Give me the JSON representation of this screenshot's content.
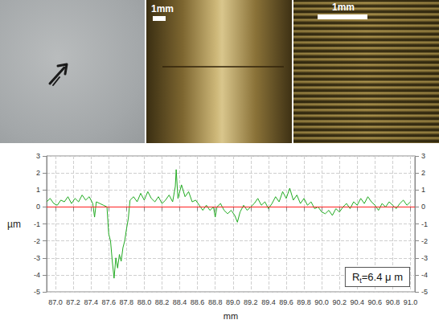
{
  "photos": {
    "scale_bars": [
      "1mm",
      "1mm"
    ]
  },
  "chart_data": {
    "type": "line",
    "xlabel": "mm",
    "ylabel": "µm",
    "annotation": "Rt=6.4 μ m",
    "color": "#22aa22",
    "zero_line": 0,
    "zero_line_color": "#ff2020",
    "grid": true,
    "xlim": [
      86.9,
      91.05
    ],
    "xticks": [
      {
        "value": 87,
        "label": "87.0"
      },
      87.2,
      87.4,
      87.6,
      87.8,
      {
        "value": 88,
        "label": "88.0"
      },
      88.2,
      88.4,
      88.6,
      88.8,
      {
        "value": 89,
        "label": "89.0"
      },
      89.2,
      89.4,
      89.6,
      89.8,
      {
        "value": 90,
        "label": "90.0"
      },
      90.2,
      90.4,
      90.6,
      90.8,
      {
        "value": 91,
        "label": "91.0"
      }
    ],
    "ylim": [
      -5,
      3
    ],
    "yticks": [
      -5,
      -4,
      -3,
      -2,
      -1,
      0,
      1,
      2,
      3
    ],
    "y2lim": [
      -5,
      3
    ],
    "y2ticks": [
      -5,
      -4,
      -3,
      -2,
      -1,
      0,
      1,
      2,
      3
    ],
    "x": [
      86.9,
      86.94,
      86.98,
      87.02,
      87.06,
      87.1,
      87.14,
      87.18,
      87.22,
      87.26,
      87.3,
      87.34,
      87.38,
      87.42,
      87.44,
      87.46,
      87.5,
      87.54,
      87.58,
      87.6,
      87.62,
      87.64,
      87.66,
      87.68,
      87.7,
      87.72,
      87.74,
      87.76,
      87.78,
      87.8,
      87.82,
      87.84,
      87.88,
      87.92,
      87.96,
      88.0,
      88.04,
      88.08,
      88.12,
      88.16,
      88.2,
      88.24,
      88.28,
      88.32,
      88.35,
      88.36,
      88.38,
      88.42,
      88.46,
      88.5,
      88.54,
      88.58,
      88.62,
      88.66,
      88.7,
      88.74,
      88.78,
      88.8,
      88.82,
      88.86,
      88.9,
      88.94,
      88.98,
      89.02,
      89.05,
      89.08,
      89.12,
      89.16,
      89.2,
      89.24,
      89.28,
      89.32,
      89.36,
      89.4,
      89.44,
      89.48,
      89.52,
      89.56,
      89.6,
      89.64,
      89.68,
      89.72,
      89.76,
      89.8,
      89.84,
      89.88,
      89.92,
      89.96,
      90.0,
      90.04,
      90.08,
      90.12,
      90.16,
      90.2,
      90.24,
      90.28,
      90.32,
      90.36,
      90.4,
      90.44,
      90.48,
      90.52,
      90.56,
      90.6,
      90.64,
      90.68,
      90.72,
      90.76,
      90.8,
      90.84,
      90.88,
      90.92,
      90.96,
      91.0
    ],
    "values": [
      0.3,
      0.5,
      0.2,
      0.1,
      0.4,
      0.3,
      0.6,
      0.2,
      0.5,
      0.3,
      0.7,
      0.4,
      0.6,
      0.2,
      -0.6,
      0.3,
      0.2,
      0.1,
      0.0,
      -1.6,
      -2.0,
      -3.2,
      -4.2,
      -3.0,
      -3.6,
      -2.8,
      -3.2,
      -2.4,
      -2.0,
      -1.3,
      -0.7,
      0.4,
      0.6,
      0.3,
      0.8,
      0.4,
      0.9,
      0.5,
      0.3,
      0.6,
      0.2,
      0.4,
      0.7,
      0.3,
      1.2,
      2.2,
      0.5,
      1.3,
      0.6,
      0.9,
      0.3,
      0.4,
      0.1,
      -0.2,
      0.1,
      -0.2,
      0.0,
      -0.6,
      0.0,
      0.2,
      -0.2,
      -0.4,
      -0.2,
      -0.5,
      -0.9,
      -0.3,
      0.1,
      -0.2,
      0.0,
      0.2,
      0.5,
      0.1,
      0.3,
      -0.1,
      0.2,
      0.6,
      0.3,
      0.9,
      0.5,
      1.1,
      0.4,
      0.7,
      0.2,
      0.5,
      0.1,
      0.3,
      -0.1,
      0.0,
      -0.3,
      -0.4,
      -0.2,
      -0.5,
      -0.1,
      -0.3,
      0.0,
      0.2,
      -0.1,
      0.3,
      0.1,
      0.5,
      0.2,
      0.6,
      0.3,
      0.1,
      -0.2,
      0.2,
      0.0,
      0.3,
      0.1,
      -0.1,
      0.2,
      0.4,
      0.1,
      0.3
    ]
  }
}
